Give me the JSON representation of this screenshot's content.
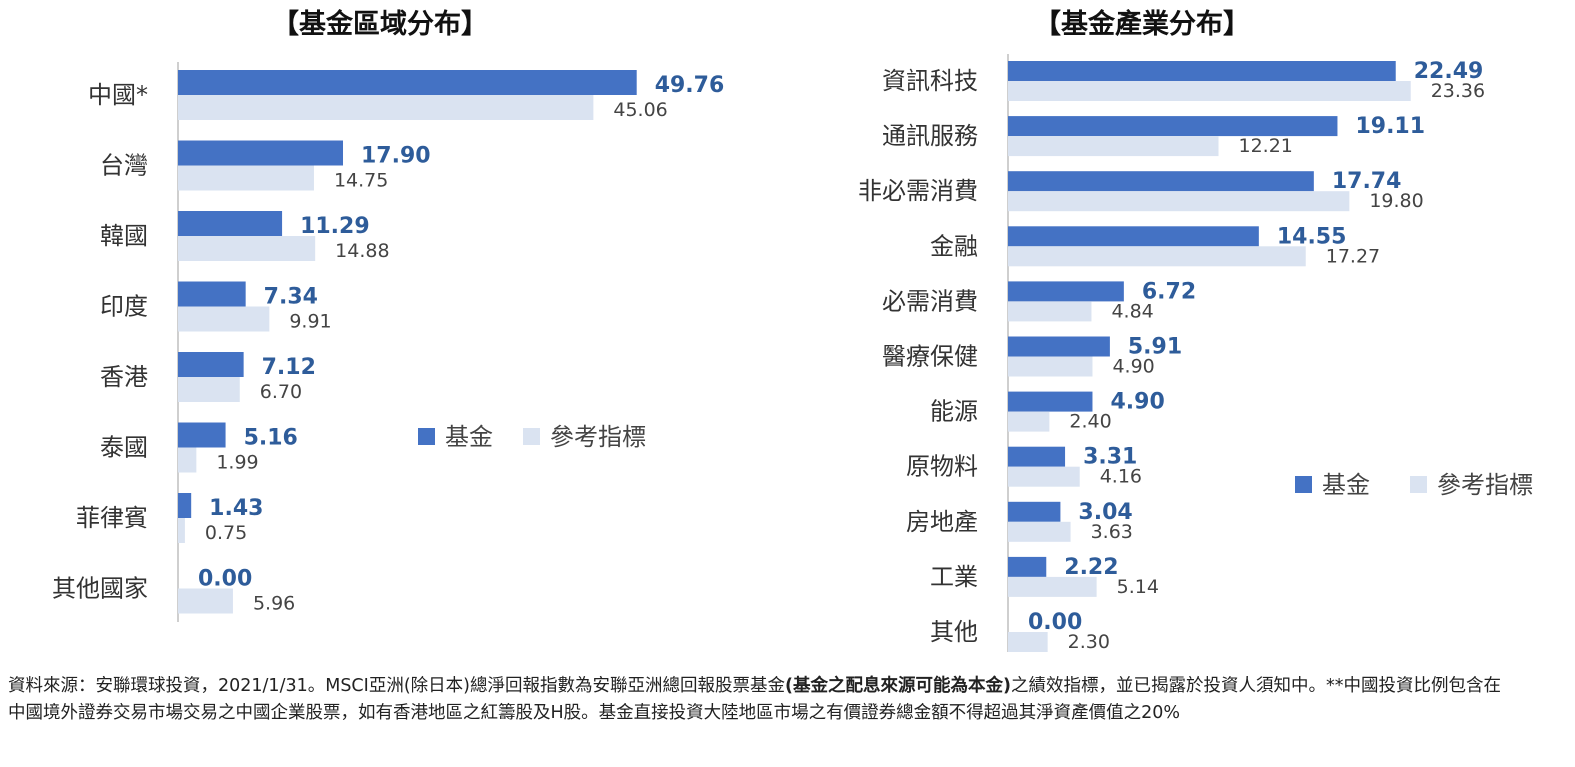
{
  "chart_data": [
    {
      "type": "bar",
      "orientation": "horizontal",
      "title": "【基金區域分布】",
      "categories": [
        "中國*",
        "台灣",
        "韓國",
        "印度",
        "香港",
        "泰國",
        "菲律賓",
        "其他國家"
      ],
      "series": [
        {
          "name": "基金",
          "color": "#4472C4",
          "values": [
            49.76,
            17.9,
            11.29,
            7.34,
            7.12,
            5.16,
            1.43,
            0.0
          ],
          "labels": [
            "49.76",
            "17.90",
            "11.29",
            "7.34",
            "7.12",
            "5.16",
            "1.43",
            "0.00"
          ]
        },
        {
          "name": "參考指標",
          "color": "#DAE3F1",
          "values": [
            45.06,
            14.75,
            14.88,
            9.91,
            6.7,
            1.99,
            0.75,
            5.96
          ],
          "labels": [
            "45.06",
            "14.75",
            "14.88",
            "9.91",
            "6.70",
            "1.99",
            "0.75",
            "5.96"
          ]
        }
      ],
      "xlim": [
        0,
        55
      ],
      "legend": "right-middle",
      "grid": false
    },
    {
      "type": "bar",
      "orientation": "horizontal",
      "title": "【基金產業分布】",
      "categories": [
        "資訊科技",
        "通訊服務",
        "非必需消費",
        "金融",
        "必需消費",
        "醫療保健",
        "能源",
        "原物料",
        "房地產",
        "工業",
        "其他"
      ],
      "series": [
        {
          "name": "基金",
          "color": "#4472C4",
          "values": [
            22.49,
            19.11,
            17.74,
            14.55,
            6.72,
            5.91,
            4.9,
            3.31,
            3.04,
            2.22,
            0.0
          ],
          "labels": [
            "22.49",
            "19.11",
            "17.74",
            "14.55",
            "6.72",
            "5.91",
            "4.90",
            "3.31",
            "3.04",
            "2.22",
            "0.00"
          ]
        },
        {
          "name": "參考指標",
          "color": "#DAE3F1",
          "values": [
            23.36,
            12.21,
            19.8,
            17.27,
            4.84,
            4.9,
            2.4,
            4.16,
            3.63,
            5.14,
            2.3
          ],
          "labels": [
            "23.36",
            "12.21",
            "19.80",
            "17.27",
            "4.84",
            "4.90",
            "2.40",
            "4.16",
            "3.63",
            "5.14",
            "2.30"
          ]
        }
      ],
      "xlim": [
        0,
        25
      ],
      "legend": "right-bottom",
      "grid": false
    }
  ],
  "footnote": {
    "part1": "資料來源：安聯環球投資，2021/1/31。MSCI亞洲(除日本)總淨回報指數為安聯亞洲總回報股票基金",
    "bold": "(基金之配息來源可能為本金)",
    "part2": "之績效指標，並已揭露於投資人須知中。**中國投資比例包含在中國境外證券交易市場交易之中國企業股票，如有香港地區之紅籌股及H股。基金直接投資大陸地區市場之有價證券總金額不得超過其淨資產價值之20%"
  }
}
